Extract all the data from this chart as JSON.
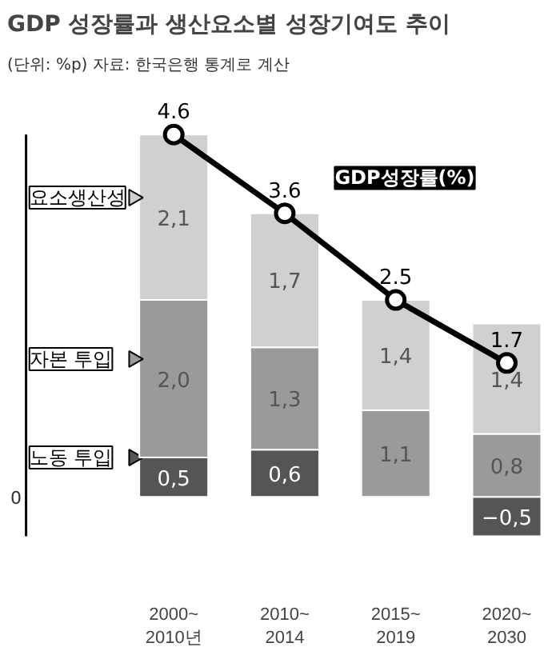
{
  "chart_data": {
    "type": "bar",
    "title": "GDP 성장률과 생산요소별 성장기여도 추이",
    "subtitle": "(단위: %p) 자료: 한국은행 통계로 계산",
    "categories": [
      "2000~2010년",
      "2010~2014",
      "2015~2019",
      "2020~2030"
    ],
    "stacked": true,
    "series": [
      {
        "name": "노동 투입",
        "color": "#555555",
        "values": [
          0.5,
          0.6,
          null,
          -0.5
        ],
        "value_labels": [
          "0,5",
          "0,6",
          null,
          "−0,5"
        ]
      },
      {
        "name": "자본 투입",
        "color": "#9a9a9a",
        "values": [
          2.0,
          1.3,
          1.1,
          0.8
        ],
        "value_labels": [
          "2,0",
          "1,3",
          "1,1",
          "0,8"
        ]
      },
      {
        "name": "요소생산성",
        "color": "#d0d0d0",
        "values": [
          2.1,
          1.7,
          1.4,
          1.4
        ],
        "value_labels": [
          "2,1",
          "1,7",
          "1,4",
          "1,4"
        ]
      },
      {
        "name": "GDP성장률(%)",
        "type": "line",
        "color": "#000000",
        "values": [
          4.6,
          3.6,
          2.5,
          1.7
        ],
        "value_labels": [
          "4.6",
          "3.6",
          "2.5",
          "1.7"
        ]
      }
    ],
    "annotations": [
      "0"
    ],
    "marker": "circle",
    "legend": "left",
    "grid": false
  }
}
